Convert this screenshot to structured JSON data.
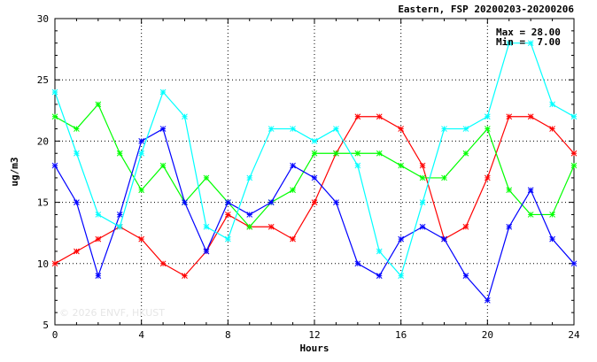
{
  "chart_data": {
    "type": "line",
    "title": "Eastern, FSP 20200203-20200206",
    "xlabel": "Hours",
    "ylabel": "ug/m3",
    "xlim": [
      0,
      24
    ],
    "ylim": [
      5,
      30
    ],
    "xticks": [
      0,
      4,
      8,
      12,
      16,
      20,
      24
    ],
    "yticks": [
      5,
      10,
      15,
      20,
      25,
      30
    ],
    "grid": true,
    "stats": {
      "max_label": "Max = 28.00",
      "min_label": "Min =  7.00"
    },
    "watermark": "© 2026 ENVF, HKUST",
    "x": [
      0,
      1,
      2,
      3,
      4,
      5,
      6,
      7,
      8,
      9,
      10,
      11,
      12,
      13,
      14,
      15,
      16,
      17,
      18,
      19,
      20,
      21,
      22,
      23,
      24
    ],
    "series": [
      {
        "color": "#ff0000",
        "values": [
          10,
          11,
          12,
          13,
          12,
          10,
          9,
          11,
          14,
          13,
          13,
          12,
          15,
          19,
          22,
          22,
          21,
          18,
          12,
          13,
          17,
          22,
          22,
          21,
          19
        ]
      },
      {
        "color": "#00ff00",
        "values": [
          22,
          21,
          23,
          19,
          16,
          18,
          15,
          17,
          15,
          13,
          15,
          16,
          19,
          19,
          19,
          19,
          18,
          17,
          17,
          19,
          21,
          16,
          14,
          14,
          18
        ]
      },
      {
        "color": "#0000ff",
        "values": [
          18,
          15,
          9,
          14,
          20,
          21,
          15,
          11,
          15,
          14,
          15,
          18,
          17,
          15,
          10,
          9,
          12,
          13,
          12,
          9,
          7,
          13,
          16,
          12,
          10
        ]
      },
      {
        "color": "#00ffff",
        "values": [
          24,
          19,
          14,
          13,
          19,
          24,
          22,
          13,
          12,
          17,
          21,
          21,
          20,
          21,
          18,
          11,
          9,
          15,
          21,
          21,
          22,
          28,
          28,
          23,
          22
        ]
      }
    ]
  }
}
